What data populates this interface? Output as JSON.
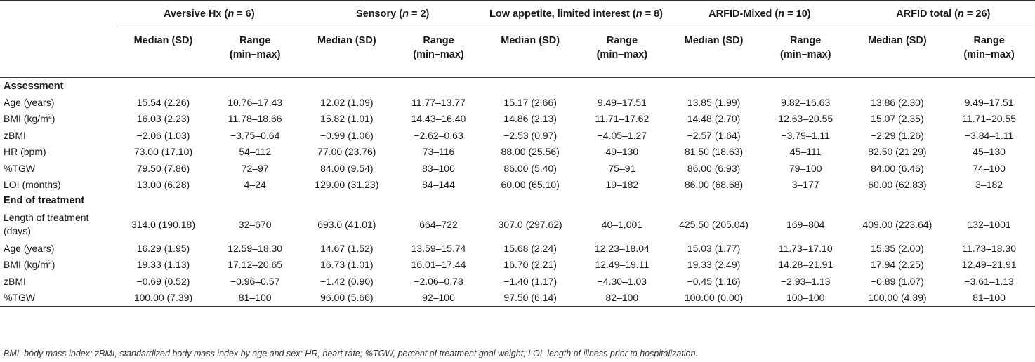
{
  "groups": [
    {
      "name": "Aversive Hx",
      "n": "6"
    },
    {
      "name": "Sensory",
      "n": "2"
    },
    {
      "name": "Low appetite, limited interest",
      "n": "8"
    },
    {
      "name": "ARFID-Mixed",
      "n": "10"
    },
    {
      "name": "ARFID total",
      "n": "26"
    }
  ],
  "sub": {
    "median": "Median (SD)",
    "range_l1": "Range",
    "range_l2": "(min–max)"
  },
  "sections": {
    "assessment": "Assessment",
    "end": "End of treatment"
  },
  "assessment_rows": [
    {
      "label": "Age (years)",
      "cells": [
        "15.54 (2.26)",
        "10.76–17.43",
        "12.02 (1.09)",
        "11.77–13.77",
        "15.17 (2.66)",
        "9.49–17.51",
        "13.85 (1.99)",
        "9.82–16.63",
        "13.86 (2.30)",
        "9.49–17.51"
      ]
    },
    {
      "label": "BMI (kg/m",
      "sup": "2",
      "label_after": ")",
      "cells": [
        "16.03 (2.23)",
        "11.78–18.66",
        "15.82 (1.01)",
        "14.43–16.40",
        "14.86 (2.13)",
        "11.71–17.62",
        "14.48 (2.70)",
        "12.63–20.55",
        "15.07 (2.35)",
        "11.71–20.55"
      ]
    },
    {
      "label": "zBMI",
      "cells": [
        "−2.06 (1.03)",
        "−3.75–0.64",
        "−0.99 (1.06)",
        "−2.62–0.63",
        "−2.53 (0.97)",
        "−4.05–1.27",
        "−2.57 (1.64)",
        "−3.79–1.11",
        "−2.29 (1.26)",
        "−3.84–1.11"
      ]
    },
    {
      "label": "HR (bpm)",
      "cells": [
        "73.00 (17.10)",
        "54–112",
        "77.00 (23.76)",
        "73–116",
        "88.00 (25.56)",
        "49–130",
        "81.50 (18.63)",
        "45–111",
        "82.50 (21.29)",
        "45–130"
      ]
    },
    {
      "label": "%TGW",
      "cells": [
        "79.50 (7.86)",
        "72–97",
        "84.00 (9.54)",
        "83–100",
        "86.00 (5.40)",
        "75–91",
        "86.00 (6.93)",
        "79–100",
        "84.00 (6.46)",
        "74–100"
      ]
    },
    {
      "label": "LOI (months)",
      "cells": [
        "13.00 (6.28)",
        "4–24",
        "129.00 (31.23)",
        "84–144",
        "60.00 (65.10)",
        "19–182",
        "86.00 (68.68)",
        "3–177",
        "60.00 (62.83)",
        "3–182"
      ]
    }
  ],
  "treatment_length": {
    "label_l1": "Length of treatment",
    "label_l2": "(days)",
    "cells": [
      "314.0 (190.18)",
      "32–670",
      "693.0 (41.01)",
      "664–722",
      "307.0 (297.62)",
      "40–1,001",
      "425.50 (205.04)",
      "169–804",
      "409.00 (223.64)",
      "132–1001"
    ]
  },
  "end_rows": [
    {
      "label": "Age (years)",
      "cells": [
        "16.29 (1.95)",
        "12.59–18.30",
        "14.67 (1.52)",
        "13.59–15.74",
        "15.68 (2.24)",
        "12.23–18.04",
        "15.03 (1.77)",
        "11.73–17.10",
        "15.35 (2.00)",
        "11.73–18.30"
      ]
    },
    {
      "label": "BMI (kg/m",
      "sup": "2",
      "label_after": ")",
      "cells": [
        "19.33 (1.13)",
        "17.12–20.65",
        "16.73 (1.01)",
        "16.01–17.44",
        "16.70 (2.21)",
        "12.49–19.11",
        "19.33 (2.49)",
        "14.28–21.91",
        "17.94 (2.25)",
        "12.49–21.91"
      ]
    },
    {
      "label": "zBMI",
      "cells": [
        "−0.69 (0.52)",
        "−0.96–0.57",
        "−1.42 (0.90)",
        "−2.06–0.78",
        "−1.40 (1.17)",
        "−4.30–1.03",
        "−0.45 (1.16)",
        "−2.93–1.13",
        "−0.89 (1.07)",
        "−3.61–1.13"
      ]
    },
    {
      "label": "%TGW",
      "cells": [
        "100.00 (7.39)",
        "81–100",
        "96.00 (5.66)",
        "92–100",
        "97.50 (6.14)",
        "82–100",
        "100.00 (0.00)",
        "100–100",
        "100.00 (4.39)",
        "81–100"
      ]
    }
  ],
  "footnote": "BMI, body mass index; zBMI, standardized body mass index by age and sex; HR, heart rate; %TGW, percent of treatment goal weight; LOI, length of illness prior to hospitalization."
}
